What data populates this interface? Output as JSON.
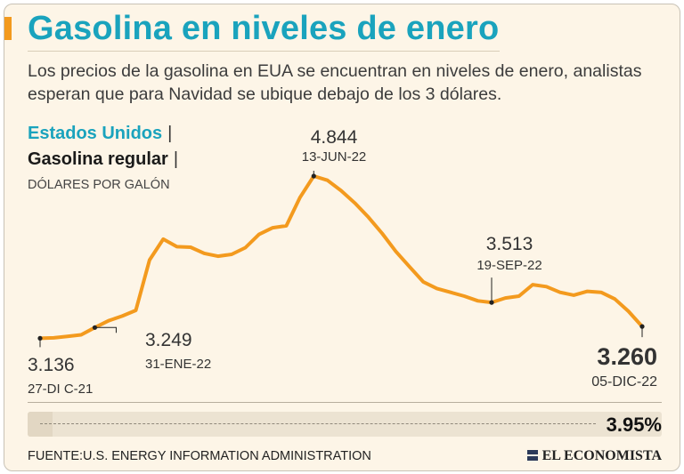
{
  "title": "Gasolina en niveles de enero",
  "subtitle": "Los precios de la gasolina en EUA se encuentran en niveles de enero, analistas esperan que para Navidad se ubique debajo de los 3 dólares.",
  "series_label": {
    "country": "Estados Unidos",
    "product": "Gasolina regular",
    "separator": "|",
    "unit": "DÓLARES POR GALÓN"
  },
  "chart_data": {
    "type": "line",
    "title": "Gasolina en niveles de enero",
    "series_name": "Gasolina regular (Estados Unidos)",
    "ylabel": "DÓLARES POR GALÓN",
    "ylim": [
      3.0,
      5.0
    ],
    "line_color": "#f39a1e",
    "values": [
      3.136,
      3.14,
      3.155,
      3.172,
      3.249,
      3.32,
      3.37,
      3.43,
      3.96,
      4.18,
      4.1,
      4.095,
      4.03,
      4.0,
      4.02,
      4.09,
      4.23,
      4.3,
      4.32,
      4.62,
      4.844,
      4.8,
      4.69,
      4.56,
      4.41,
      4.24,
      4.05,
      3.89,
      3.73,
      3.66,
      3.62,
      3.58,
      3.53,
      3.513,
      3.56,
      3.58,
      3.7,
      3.68,
      3.62,
      3.59,
      3.63,
      3.62,
      3.55,
      3.42,
      3.26
    ],
    "annotations": [
      {
        "value": "3.136",
        "date": "27-DI C-21",
        "index": 0
      },
      {
        "value": "3.249",
        "date": "31-ENE-22",
        "index": 4
      },
      {
        "value": "4.844",
        "date": "13-JUN-22",
        "index": 20
      },
      {
        "value": "3.513",
        "date": "19-SEP-22",
        "index": 33
      },
      {
        "value": "3.260",
        "date": "05-DIC-22",
        "index": 44
      }
    ]
  },
  "progress": {
    "value_label": "3.95%",
    "fraction": 0.0395
  },
  "source": "FUENTE:U.S. ENERGY INFORMATION ADMINISTRATION",
  "brand": "EL ECONOMISTA"
}
